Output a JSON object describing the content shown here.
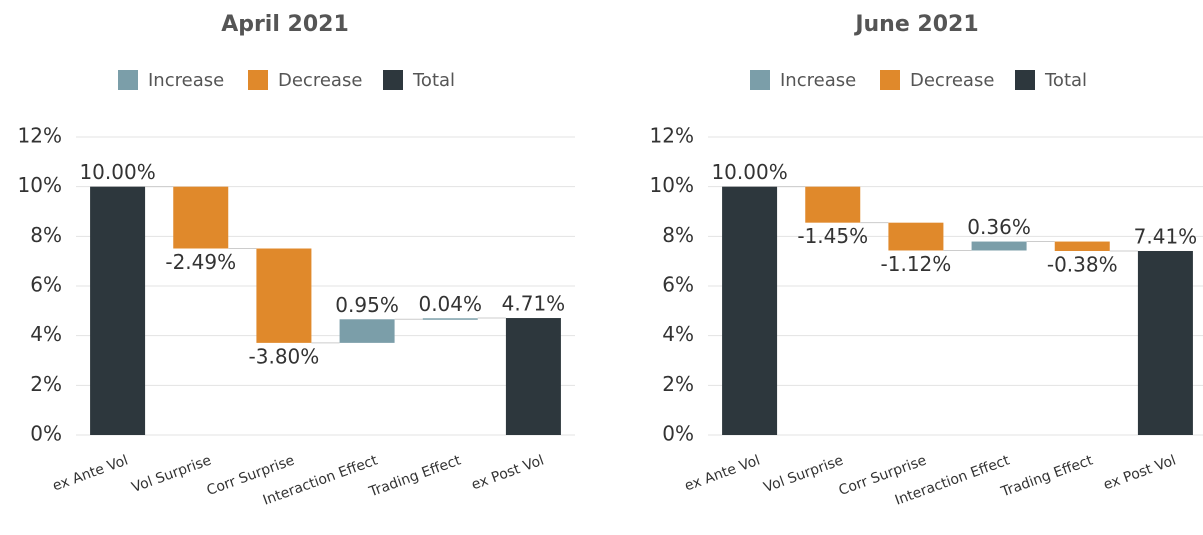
{
  "chart_data": [
    {
      "type": "waterfall",
      "title": "April 2021",
      "categories": [
        "ex Ante Vol",
        "Vol Surprise",
        "Corr Surprise",
        "Interaction Effect",
        "Trading Effect",
        "ex Post Vol"
      ],
      "values": [
        10,
        -2.49,
        -3.8,
        0.95,
        0.04,
        4.71
      ],
      "value_labels": [
        "10.00%",
        "-2.49%",
        "-3.80%",
        "0.95%",
        "0.04%",
        "4.71%"
      ],
      "totals": [
        true,
        false,
        false,
        false,
        false,
        true
      ],
      "legend": [
        {
          "name": "Increase",
          "color": "#7b9ea9"
        },
        {
          "name": "Decrease",
          "color": "#e0892b"
        },
        {
          "name": "Total",
          "color": "#2d373d"
        }
      ],
      "ylim": [
        0,
        12
      ],
      "yticks": [
        {
          "value": 0,
          "label": "0%"
        },
        {
          "value": 2,
          "label": "2%"
        },
        {
          "value": 4,
          "label": "4%"
        },
        {
          "value": 6,
          "label": "6%"
        },
        {
          "value": 8,
          "label": "8%"
        },
        {
          "value": 10,
          "label": "10%"
        },
        {
          "value": 12,
          "label": "12%"
        }
      ],
      "grid": true
    },
    {
      "type": "waterfall",
      "title": "June 2021",
      "categories": [
        "ex Ante Vol",
        "Vol Surprise",
        "Corr Surprise",
        "Interaction Effect",
        "Trading Effect",
        "ex Post Vol"
      ],
      "values": [
        10,
        -1.45,
        -1.12,
        0.36,
        -0.38,
        7.41
      ],
      "value_labels": [
        "10.00%",
        "-1.45%",
        "-1.12%",
        "0.36%",
        "-0.38%",
        "7.41%"
      ],
      "totals": [
        true,
        false,
        false,
        false,
        false,
        true
      ],
      "legend": [
        {
          "name": "Increase",
          "color": "#7b9ea9"
        },
        {
          "name": "Decrease",
          "color": "#e0892b"
        },
        {
          "name": "Total",
          "color": "#2d373d"
        }
      ],
      "ylim": [
        0,
        12
      ],
      "yticks": [
        {
          "value": 0,
          "label": "0%"
        },
        {
          "value": 2,
          "label": "2%"
        },
        {
          "value": 4,
          "label": "4%"
        },
        {
          "value": 6,
          "label": "6%"
        },
        {
          "value": 8,
          "label": "8%"
        },
        {
          "value": 10,
          "label": "10%"
        },
        {
          "value": 12,
          "label": "12%"
        }
      ],
      "grid": true
    }
  ]
}
